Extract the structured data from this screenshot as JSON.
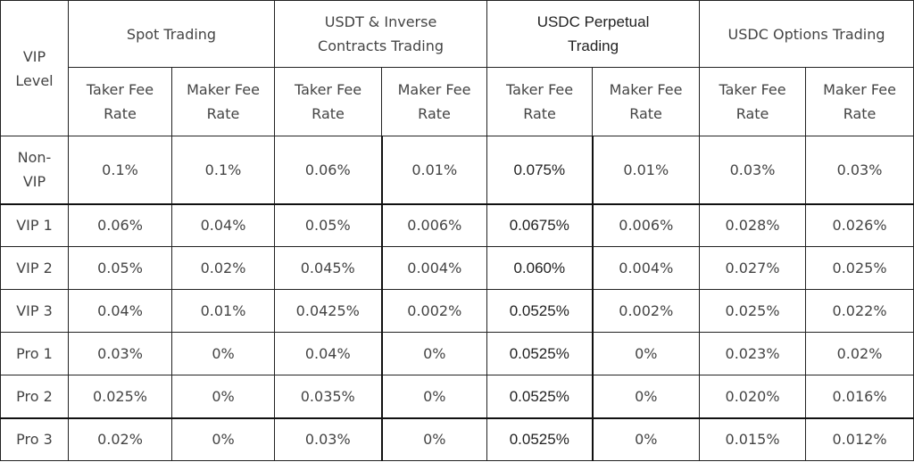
{
  "header": {
    "vip_level": "VIP Level",
    "groups": [
      "Spot Trading",
      "USDT & Inverse Contracts Trading",
      "USDC Perpetual Trading",
      "USDC Options Trading"
    ],
    "taker": "Taker Fee Rate",
    "maker": "Maker Fee Rate"
  },
  "rows": [
    {
      "level": "Non-VIP",
      "values": [
        "0.1%",
        "0.1%",
        "0.06%",
        "0.01%",
        "0.075%",
        "0.01%",
        "0.03%",
        "0.03%"
      ]
    },
    {
      "level": "VIP 1",
      "values": [
        "0.06%",
        "0.04%",
        "0.05%",
        "0.006%",
        "0.0675%",
        "0.006%",
        "0.028%",
        "0.026%"
      ]
    },
    {
      "level": "VIP 2",
      "values": [
        "0.05%",
        "0.02%",
        "0.045%",
        "0.004%",
        "0.060%",
        "0.004%",
        "0.027%",
        "0.025%"
      ]
    },
    {
      "level": "VIP 3",
      "values": [
        "0.04%",
        "0.01%",
        "0.0425%",
        "0.002%",
        "0.0525%",
        "0.002%",
        "0.025%",
        "0.022%"
      ]
    },
    {
      "level": "Pro 1",
      "values": [
        "0.03%",
        "0%",
        "0.04%",
        "0%",
        "0.0525%",
        "0%",
        "0.023%",
        "0.02%"
      ]
    },
    {
      "level": "Pro 2",
      "values": [
        "0.025%",
        "0%",
        "0.035%",
        "0%",
        "0.0525%",
        "0%",
        "0.020%",
        "0.016%"
      ]
    },
    {
      "level": "Pro 3",
      "values": [
        "0.02%",
        "0%",
        "0.03%",
        "0%",
        "0.0525%",
        "0%",
        "0.015%",
        "0.012%"
      ]
    }
  ]
}
